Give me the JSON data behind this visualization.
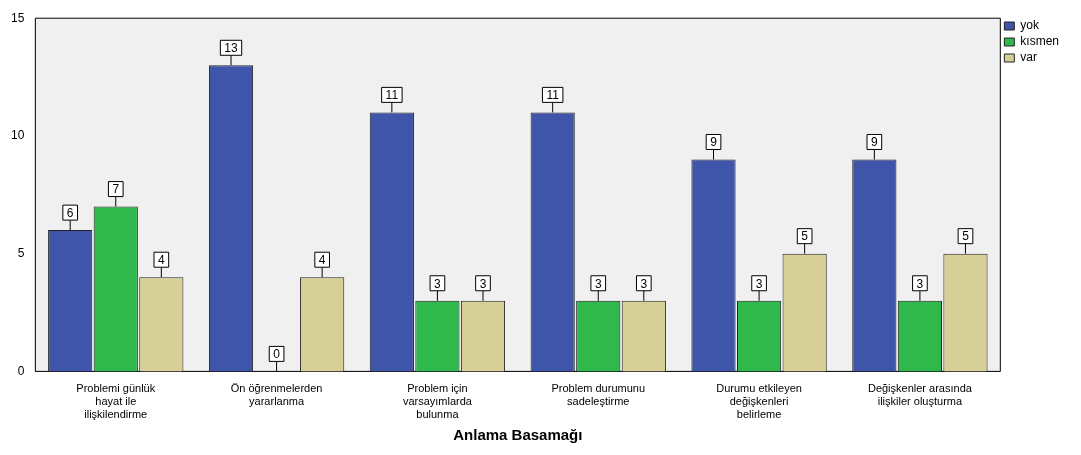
{
  "chart_data": {
    "type": "bar",
    "xlabel": "Anlama Basamağı",
    "categories": [
      "Problemi günlük hayat ile ilişkilendirme",
      "Ön öğrenmelerden yararlanma",
      "Problem için varsayımlarda bulunma",
      "Problem durumunu sadeleştirme",
      "Durumu etkileyen değişkenleri belirleme",
      "Değişkenler arasında ilişkiler oluşturma"
    ],
    "series": [
      {
        "name": "yok",
        "color": "#3f55a9",
        "values": [
          6,
          13,
          11,
          11,
          9,
          9
        ]
      },
      {
        "name": "kısmen",
        "color": "#2fb84b",
        "values": [
          7,
          0,
          3,
          3,
          3,
          3
        ]
      },
      {
        "name": "var",
        "color": "#d6cf96",
        "values": [
          4,
          4,
          3,
          3,
          5,
          5
        ]
      }
    ],
    "ylim": [
      0,
      15
    ],
    "yticks": [
      0,
      5,
      10,
      15
    ],
    "grid": false,
    "legend": "top right",
    "data_labels": true
  }
}
